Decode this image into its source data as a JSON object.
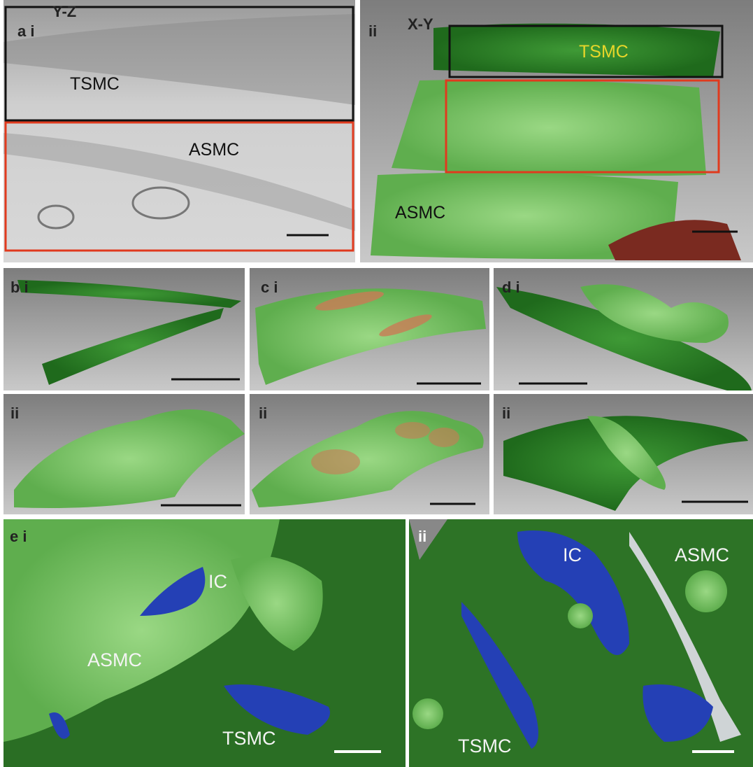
{
  "panels": [
    {
      "label": "a i",
      "view": "Y-Z",
      "annotations": [
        "TSMC",
        "ASMC"
      ]
    },
    {
      "label": "ii",
      "view": "X-Y",
      "annotations": [
        "TSMC",
        "ASMC"
      ]
    },
    {
      "label": "b i"
    },
    {
      "label": "c i"
    },
    {
      "label": "d i"
    },
    {
      "label": "ii"
    },
    {
      "label": "ii"
    },
    {
      "label": "ii"
    },
    {
      "label": "e i",
      "annotations": [
        "IC",
        "ASMC",
        "TSMC"
      ]
    },
    {
      "label": "ii",
      "annotations": [
        "IC",
        "ASMC",
        "TSMC"
      ]
    }
  ]
}
